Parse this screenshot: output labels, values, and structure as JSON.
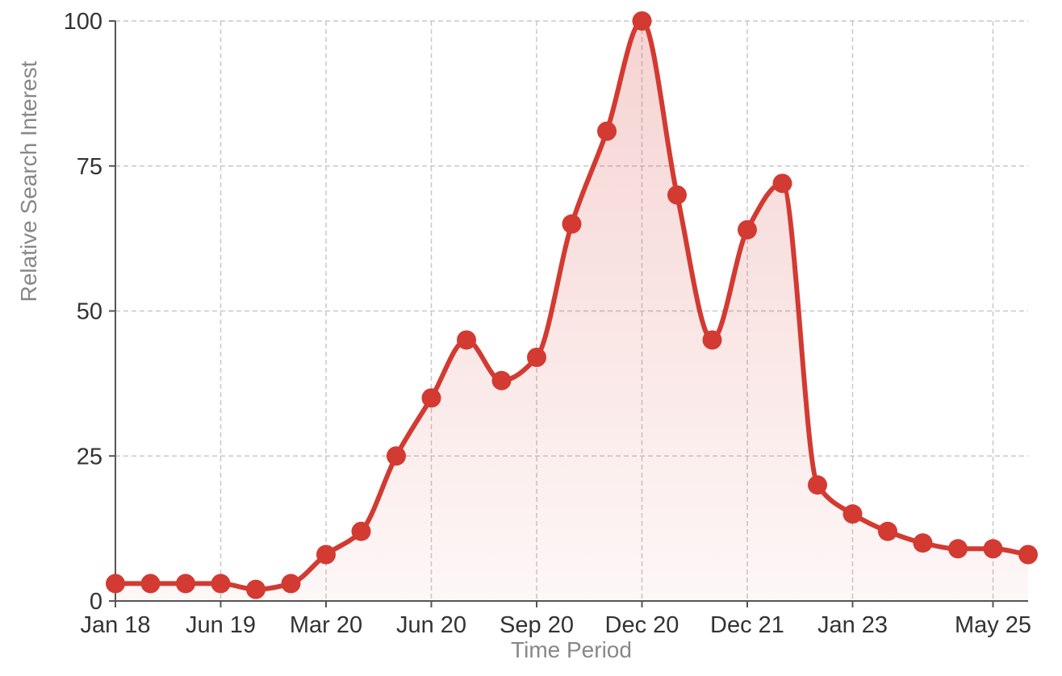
{
  "chart_data": {
    "type": "area",
    "title": "",
    "xlabel": "Time Period",
    "ylabel": "Relative Search Interest",
    "ylim": [
      0,
      100
    ],
    "yticks": [
      0,
      25,
      50,
      75,
      100
    ],
    "xticks": [
      {
        "label": "Jan 18",
        "index": 0
      },
      {
        "label": "Jun 19",
        "index": 3
      },
      {
        "label": "Mar 20",
        "index": 6
      },
      {
        "label": "Jun 20",
        "index": 9
      },
      {
        "label": "Sep 20",
        "index": 12
      },
      {
        "label": "Dec 20",
        "index": 15
      },
      {
        "label": "Dec 21",
        "index": 18
      },
      {
        "label": "Jan 23",
        "index": 21
      },
      {
        "label": "May 25",
        "index": 25
      }
    ],
    "grid": true,
    "line_color": "#d23a32",
    "fill_color": "#d23a32",
    "series": [
      {
        "values": [
          3,
          3,
          3,
          3,
          2,
          3,
          8,
          12,
          25,
          35,
          45,
          38,
          42,
          65,
          81,
          100,
          70,
          45,
          64,
          72,
          20,
          15,
          12,
          10,
          9,
          9,
          8
        ]
      }
    ]
  }
}
